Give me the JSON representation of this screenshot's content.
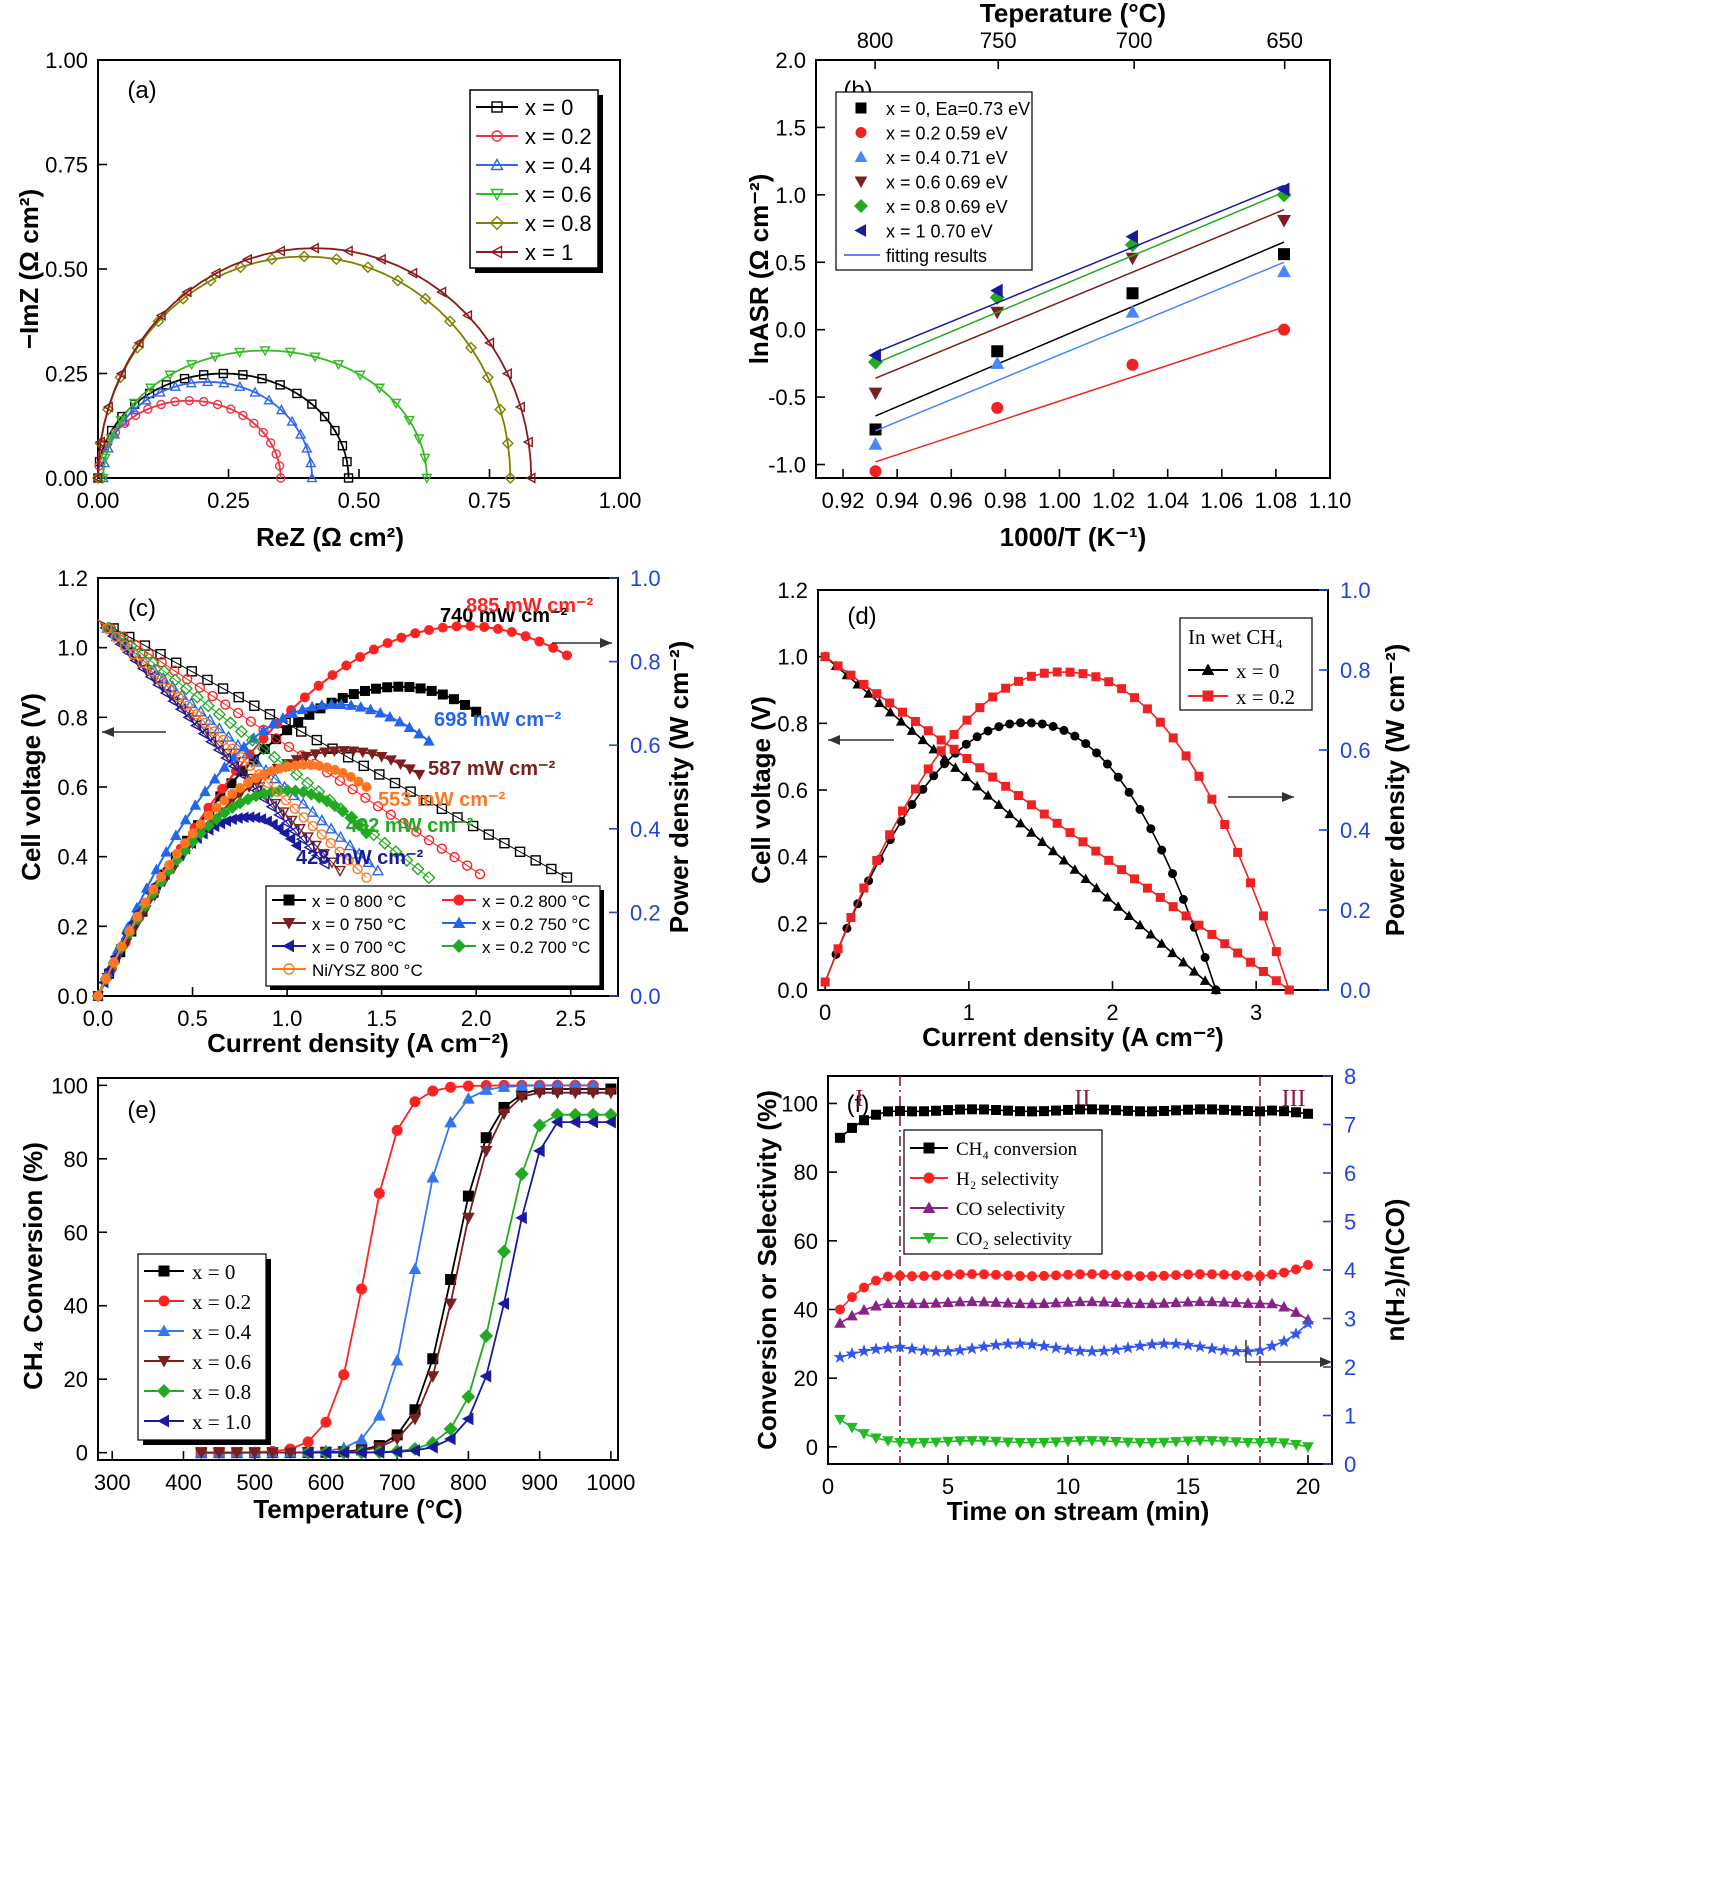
{
  "chart_data": [
    {
      "id": "a",
      "type": "line",
      "panel_label": "(a)",
      "xlabel": "ReZ (Ω cm²)",
      "ylabel": "−ImZ (Ω cm²)",
      "xlim": [
        0,
        1
      ],
      "ylim": [
        0,
        1
      ],
      "xticks": [
        "0.00",
        "0.25",
        "0.50",
        "0.75",
        "1.00"
      ],
      "yticks": [
        "0.00",
        "0.25",
        "0.50",
        "0.75",
        "1.00"
      ],
      "legend_position": "top-right",
      "series": [
        {
          "name": "x = 0",
          "color": "#000000",
          "marker": "square",
          "x_start": 0.0,
          "x_end": 0.48,
          "peak": 0.25
        },
        {
          "name": "x = 0.2",
          "color": "#ee3344",
          "marker": "circle",
          "x_start": 0.0,
          "x_end": 0.35,
          "peak": 0.185
        },
        {
          "name": "x = 0.4",
          "color": "#3366ee",
          "marker": "triangle-up",
          "x_start": 0.01,
          "x_end": 0.41,
          "peak": 0.23
        },
        {
          "name": "x = 0.6",
          "color": "#33bb22",
          "marker": "triangle-down",
          "x_start": 0.01,
          "x_end": 0.63,
          "peak": 0.305
        },
        {
          "name": "x = 0.8",
          "color": "#808000",
          "marker": "diamond",
          "x_start": 0.0,
          "x_end": 0.79,
          "peak": 0.53
        },
        {
          "name": "x = 1",
          "color": "#8b1a1a",
          "marker": "triangle-left",
          "x_start": 0.0,
          "x_end": 0.83,
          "peak": 0.55
        }
      ]
    },
    {
      "id": "b",
      "type": "scatter",
      "panel_label": "(b)",
      "title": "Teperature (°C)",
      "xlabel": "1000/T (K⁻¹)",
      "ylabel": "lnASR (Ω cm⁻²)",
      "xlim": [
        0.91,
        1.1
      ],
      "ylim": [
        -1.1,
        2.0
      ],
      "xticks": [
        "0.92",
        "0.94",
        "0.96",
        "0.98",
        "1.00",
        "1.02",
        "1.04",
        "1.06",
        "1.08",
        "1.10"
      ],
      "yticks": [
        "-1.0",
        "-0.5",
        "0.0",
        "0.5",
        "1.0",
        "1.5",
        "2.0"
      ],
      "top_ticks": [
        "650",
        "700",
        "750",
        "800"
      ],
      "x": [
        0.932,
        0.977,
        1.027,
        1.083
      ],
      "legend_position": "top-left",
      "fit_label": "fitting results",
      "series": [
        {
          "name": "x = 0, Ea=0.73 eV",
          "color": "#000000",
          "marker": "square",
          "values": [
            -0.74,
            -0.16,
            0.27,
            0.56
          ],
          "fit": [
            -0.64,
            0.65
          ]
        },
        {
          "name": "x = 0.2      0.59 eV",
          "color": "#ee2222",
          "marker": "circle",
          "values": [
            -1.05,
            -0.58,
            -0.26,
            0.0
          ],
          "fit": [
            -0.98,
            0.02
          ]
        },
        {
          "name": "x = 0.4      0.71 eV",
          "color": "#4488ff",
          "marker": "triangle-up",
          "values": [
            -0.85,
            -0.25,
            0.13,
            0.43
          ],
          "fit": [
            -0.75,
            0.5
          ]
        },
        {
          "name": "x = 0.6      0.69 eV",
          "color": "#7a1e1e",
          "marker": "triangle-down",
          "values": [
            -0.47,
            0.13,
            0.53,
            0.81
          ],
          "fit": [
            -0.36,
            0.89
          ]
        },
        {
          "name": "x = 0.8      0.69 eV",
          "color": "#22aa22",
          "marker": "diamond",
          "values": [
            -0.24,
            0.24,
            0.63,
            1.0
          ],
          "fit": [
            -0.25,
            1.02
          ]
        },
        {
          "name": "x = 1         0.70 eV",
          "color": "#1a1aa0",
          "marker": "triangle-left",
          "values": [
            -0.19,
            0.29,
            0.69,
            1.04
          ],
          "fit": [
            -0.17,
            1.07
          ]
        }
      ]
    },
    {
      "id": "c",
      "type": "line",
      "panel_label": "(c)",
      "xlabel": "Current density (A cm⁻²)",
      "ylabel": "Cell voltage (V)",
      "ylabel_right": "Power density (W cm⁻²)",
      "xlim": [
        0,
        2.75
      ],
      "ylim": [
        0,
        1.2
      ],
      "ylim_right": [
        0,
        1.0
      ],
      "xticks": [
        "0.0",
        "0.5",
        "1.0",
        "1.5",
        "2.0",
        "2.5"
      ],
      "yticks": [
        "0.0",
        "0.2",
        "0.4",
        "0.6",
        "0.8",
        "1.0",
        "1.2"
      ],
      "yticks_right": [
        "0.0",
        "0.2",
        "0.4",
        "0.6",
        "0.8",
        "1.0"
      ],
      "legend_position": "bottom-right",
      "series": [
        {
          "name": "x = 0  800 °C",
          "color": "#000000",
          "marker": "square",
          "ocv": 1.08,
          "v_end": 0.34,
          "i_max": 2.48,
          "pmax_i": 1.6,
          "pmax": 0.74,
          "p_end": 0.68,
          "p_imax": 2.0,
          "peak_label": "740 mW cm⁻²"
        },
        {
          "name": "x = 0.2 800 °C",
          "color": "#ff2222",
          "marker": "circle",
          "ocv": 1.08,
          "v_end": 0.35,
          "i_max": 2.02,
          "pmax_i": 1.95,
          "pmax": 0.885,
          "p_end": 0.815,
          "p_imax": 2.48,
          "peak_label": "885 mW cm⁻²"
        },
        {
          "name": "x = 0  750 °C",
          "color": "#7a1e1e",
          "marker": "triangle-down",
          "ocv": 1.08,
          "v_end": 0.36,
          "i_max": 1.28,
          "pmax_i": 1.3,
          "pmax": 0.587,
          "p_end": 0.53,
          "p_imax": 1.7,
          "peak_label": "587 mW cm⁻²"
        },
        {
          "name": "x = 0.2 750 °C",
          "color": "#2266ee",
          "marker": "triangle-up",
          "ocv": 1.08,
          "v_end": 0.36,
          "i_max": 1.48,
          "pmax_i": 1.25,
          "pmax": 0.698,
          "p_end": 0.61,
          "p_imax": 1.75,
          "peak_label": "698 mW cm⁻²"
        },
        {
          "name": "x = 0  700 °C",
          "color": "#1a1aa0",
          "marker": "triangle-left",
          "ocv": 1.08,
          "v_end": 0.38,
          "i_max": 1.2,
          "pmax_i": 0.8,
          "pmax": 0.428,
          "p_end": 0.36,
          "p_imax": 1.05,
          "peak_label": "428 mW cm⁻²"
        },
        {
          "name": "x = 0.2 700 °C",
          "color": "#22aa22",
          "marker": "diamond",
          "ocv": 1.08,
          "v_end": 0.34,
          "i_max": 1.75,
          "pmax_i": 1.0,
          "pmax": 0.492,
          "p_end": 0.39,
          "p_imax": 1.42,
          "peak_label": "492 mW cm⁻²"
        },
        {
          "name": "Ni/YSZ 800 °C",
          "color": "#ff7722",
          "marker": "circle",
          "ocv": 1.08,
          "v_end": 0.34,
          "i_max": 1.42,
          "pmax_i": 1.1,
          "pmax": 0.553,
          "p_end": 0.5,
          "p_imax": 1.42,
          "peak_label": "553 mW cm⁻²"
        }
      ]
    },
    {
      "id": "d",
      "type": "line",
      "panel_label": "(d)",
      "legend_title": "In wet CH₄",
      "xlabel": "Current density (A cm⁻²)",
      "ylabel": "Cell voltage (V)",
      "ylabel_right": "Power density (W cm⁻²)",
      "xlim": [
        -0.05,
        3.5
      ],
      "ylim": [
        0,
        1.2
      ],
      "ylim_right": [
        0,
        1.0
      ],
      "xticks": [
        "0",
        "1",
        "2",
        "3"
      ],
      "yticks": [
        "0.0",
        "0.2",
        "0.4",
        "0.6",
        "0.8",
        "1.0",
        "1.2"
      ],
      "yticks_right": [
        "0.0",
        "0.2",
        "0.4",
        "0.6",
        "0.8",
        "1.0"
      ],
      "legend_position": "top-right",
      "series": [
        {
          "name": "x = 0",
          "color": "#000000",
          "marker": "triangle-up",
          "ocv": 1.0,
          "i_max": 2.72,
          "pmax_i": 1.4,
          "pmax": 0.668
        },
        {
          "name": "x = 0.2",
          "color": "#ee2222",
          "marker": "square",
          "ocv": 1.0,
          "i_max": 3.23,
          "pmax_i": 1.65,
          "pmax": 0.795
        }
      ]
    },
    {
      "id": "e",
      "type": "line",
      "panel_label": "(e)",
      "xlabel": "Temperature (°C)",
      "ylabel": "CH₄ Conversion (%)",
      "xlim": [
        280,
        1010
      ],
      "ylim": [
        -2,
        102
      ],
      "xticks": [
        "300",
        "400",
        "500",
        "600",
        "700",
        "800",
        "900",
        "1000"
      ],
      "yticks": [
        "0",
        "20",
        "40",
        "60",
        "80",
        "100"
      ],
      "legend_position": "bottom-left",
      "series": [
        {
          "name": "x = 0",
          "color": "#000000",
          "marker": "square",
          "t_start": 425,
          "t50": 778,
          "width": 55,
          "t_end": 1000,
          "y_end": 99
        },
        {
          "name": "x = 0.2",
          "color": "#ff2222",
          "marker": "circle",
          "t_start": 425,
          "t50": 655,
          "width": 48,
          "t_end": 975,
          "y_end": 100
        },
        {
          "name": "x = 0.4",
          "color": "#3377ee",
          "marker": "triangle-up",
          "t_start": 425,
          "t50": 725,
          "width": 48,
          "t_end": 975,
          "y_end": 100
        },
        {
          "name": "x = 0.6",
          "color": "#7a1e1e",
          "marker": "triangle-down",
          "t_start": 425,
          "t50": 785,
          "width": 55,
          "t_end": 1000,
          "y_end": 98
        },
        {
          "name": "x = 0.8",
          "color": "#22aa22",
          "marker": "diamond",
          "t_start": 575,
          "t50": 845,
          "width": 55,
          "t_end": 1000,
          "y_end": 92
        },
        {
          "name": "x = 1.0",
          "color": "#1a1aa0",
          "marker": "triangle-left",
          "t_start": 575,
          "t50": 860,
          "width": 55,
          "t_end": 1000,
          "y_end": 90
        }
      ]
    },
    {
      "id": "f",
      "type": "line",
      "panel_label": "(f)",
      "xlabel": "Time on stream (min)",
      "ylabel": "Conversion or Selectivity (%)",
      "ylabel_right": "n(H₂)/n(CO)",
      "xlim": [
        0,
        21
      ],
      "ylim": [
        -5,
        108
      ],
      "ylim_right": [
        0,
        8
      ],
      "xticks": [
        "0",
        "5",
        "10",
        "15",
        "20"
      ],
      "yticks": [
        "0",
        "20",
        "40",
        "60",
        "80",
        "100"
      ],
      "yticks_right": [
        "0",
        "1",
        "2",
        "3",
        "4",
        "5",
        "6",
        "7",
        "8"
      ],
      "region_labels": [
        "I",
        "II",
        "III"
      ],
      "region_lines": [
        3,
        18
      ],
      "legend_position": "top-left",
      "series": [
        {
          "name": "CH₄ conversion",
          "color": "#000000",
          "marker": "square",
          "values_start": 90,
          "values_plateau": 98,
          "values_end": 97
        },
        {
          "name": "H₂ selectivity",
          "color": "#ff2222",
          "marker": "circle",
          "values_start": 40,
          "values_plateau": 50,
          "values_end": 53
        },
        {
          "name": "CO selectivity",
          "color": "#882288",
          "marker": "triangle-up",
          "values_start": 36,
          "values_plateau": 42,
          "values_end": 37
        },
        {
          "name": "CO₂ selectivity",
          "color": "#22bb22",
          "marker": "triangle-down",
          "values_start": 8,
          "values_plateau": 1.5,
          "values_end": 0
        },
        {
          "name": "n(H₂)/n(CO)",
          "color": "#3355ee",
          "marker": "star",
          "axis": "right",
          "values_start": 2.2,
          "values_plateau": 2.4,
          "values_end": 2.9
        }
      ]
    }
  ]
}
